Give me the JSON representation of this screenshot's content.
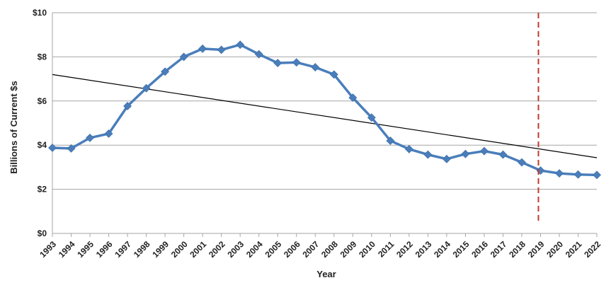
{
  "chart_data": {
    "type": "line",
    "title": "",
    "xlabel": "Year",
    "ylabel": "Billions of Current $s",
    "ylim": [
      0,
      10
    ],
    "yticks": [
      0,
      2,
      4,
      6,
      8,
      10
    ],
    "ytick_labels": [
      "$0",
      "$2",
      "$4",
      "$6",
      "$8",
      "$10"
    ],
    "grid": "horizontal",
    "legend": "none",
    "categories": [
      "1993",
      "1994",
      "1995",
      "1996",
      "1997",
      "1998",
      "1999",
      "2000",
      "2001",
      "2002",
      "2003",
      "2004",
      "2005",
      "2006",
      "2007",
      "2008",
      "2009",
      "2010",
      "2011",
      "2012",
      "2013",
      "2014",
      "2015",
      "2016",
      "2017",
      "2018",
      "2019",
      "2020",
      "2021",
      "2022"
    ],
    "series": [
      {
        "values": [
          3.88,
          3.85,
          4.33,
          4.52,
          5.77,
          6.58,
          7.33,
          8.0,
          8.37,
          8.32,
          8.55,
          8.12,
          7.72,
          7.75,
          7.53,
          7.2,
          6.15,
          5.25,
          4.2,
          3.82,
          3.57,
          3.37,
          3.6,
          3.73,
          3.57,
          3.22,
          2.85,
          2.72,
          2.67,
          2.65
        ],
        "color": "#4a7ebb",
        "marker": "diamond"
      }
    ],
    "trendline": {
      "start": 7.2,
      "end": 3.43,
      "color": "#000000"
    },
    "marker_line": {
      "at": "2019",
      "style": "dashed",
      "color": "#c0392b"
    }
  }
}
